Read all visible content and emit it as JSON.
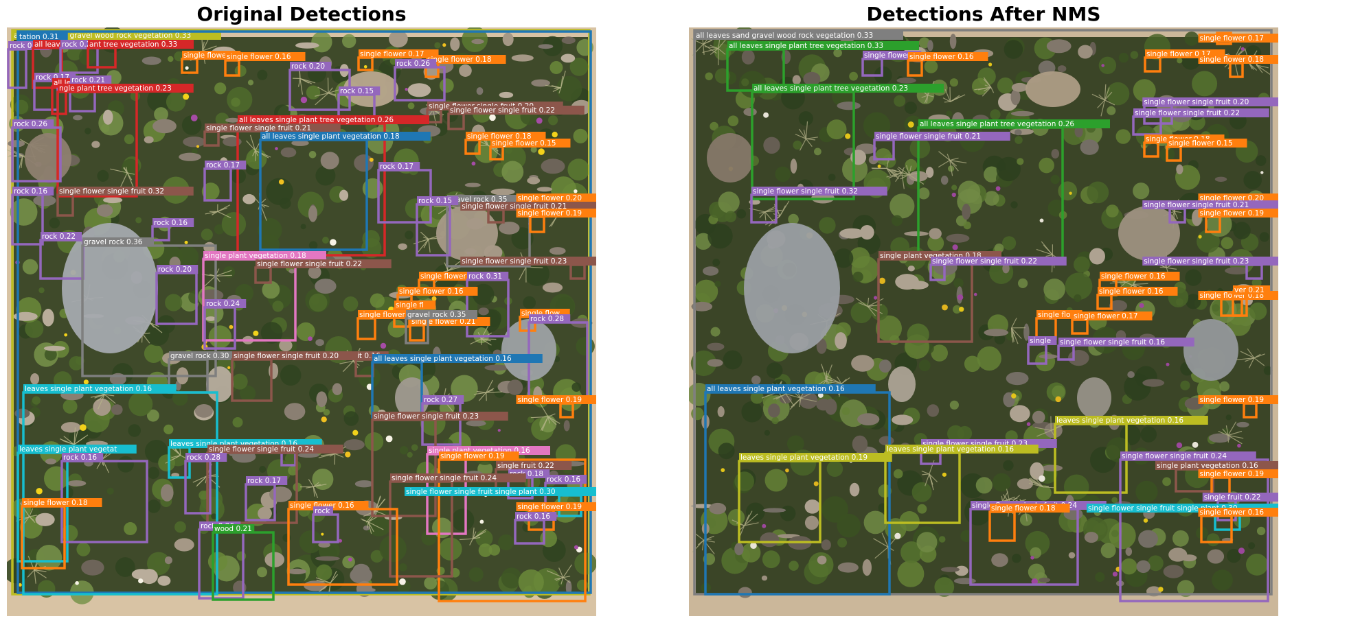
{
  "colors": {
    "all leaves": "#1f77b4",
    "rock": "#9467bd",
    "single flower": "#ff7f0e",
    "single flower single fruit": "#8c564b",
    "all leaves single plant tree": "#d62728",
    "gravel rock": "#7f7f7f",
    "leaves single plant": "#17becf",
    "single plant": "#e377c2",
    "wood": "#2ca02c",
    "sand gravel": "#bcbd22"
  },
  "panels": [
    {
      "title": "Original Detections",
      "detections": [
        {
          "label": "all leaves sand gravel wood rock vegetation 0.33",
          "color": "#bcbd22"
        },
        {
          "label": "tation 0.31",
          "color": "#1f77b4"
        },
        {
          "label": "rock 0.19",
          "color": "#9467bd"
        },
        {
          "label": "all leave",
          "color": "#d62728"
        },
        {
          "label": "rock 0.22",
          "color": "#9467bd"
        },
        {
          "label": "ant tree vegetation 0.33",
          "color": "#d62728"
        },
        {
          "label": "single flower",
          "color": "#ff7f0e"
        },
        {
          "label": "single flower 0.16",
          "color": "#ff7f0e"
        },
        {
          "label": "single flower 0.17",
          "color": "#ff7f0e"
        },
        {
          "label": "single flower 0.18",
          "color": "#ff7f0e"
        },
        {
          "label": "rock 0.17",
          "color": "#9467bd"
        },
        {
          "label": "all le",
          "color": "#d62728"
        },
        {
          "label": "rock 0.21",
          "color": "#9467bd"
        },
        {
          "label": "ngle plant tree vegetation 0.23",
          "color": "#d62728"
        },
        {
          "label": "rock 0.20",
          "color": "#9467bd"
        },
        {
          "label": "rock 0.15",
          "color": "#9467bd"
        },
        {
          "label": "rock 0.26",
          "color": "#9467bd"
        },
        {
          "label": "single flower single fruit 0.20",
          "color": "#8c564b"
        },
        {
          "label": "single flower single fruit 0.22",
          "color": "#8c564b"
        },
        {
          "label": "rock 0.26",
          "color": "#9467bd"
        },
        {
          "label": "all leaves single plant tree vegetation 0.26",
          "color": "#d62728"
        },
        {
          "label": "single flower single fruit 0.21",
          "color": "#8c564b"
        },
        {
          "label": "single flower 0.18",
          "color": "#ff7f0e"
        },
        {
          "label": "single flower 0.15",
          "color": "#ff7f0e"
        },
        {
          "label": "all leaves single plant vegetation 0.18",
          "color": "#1f77b4"
        },
        {
          "label": "rock 0.17",
          "color": "#9467bd"
        },
        {
          "label": "rock 0.17",
          "color": "#9467bd"
        },
        {
          "label": "single flower single fruit 0.32",
          "color": "#8c564b"
        },
        {
          "label": "rock 0.16",
          "color": "#9467bd"
        },
        {
          "label": "gravel rock 0.35",
          "color": "#7f7f7f"
        },
        {
          "label": "single flower 0.20",
          "color": "#ff7f0e"
        },
        {
          "label": "rock 0.15",
          "color": "#9467bd"
        },
        {
          "label": "single flower single fruit 0.21",
          "color": "#8c564b"
        },
        {
          "label": "single flower 0.19",
          "color": "#ff7f0e"
        },
        {
          "label": "rock 0.16",
          "color": "#9467bd"
        },
        {
          "label": "rock 0.22",
          "color": "#9467bd"
        },
        {
          "label": "gravel rock 0.36",
          "color": "#7f7f7f"
        },
        {
          "label": "single flower single fruit 0.23",
          "color": "#8c564b"
        },
        {
          "label": "single plant vegetation 0.18",
          "color": "#e377c2"
        },
        {
          "label": "single flower single fruit 0.22",
          "color": "#8c564b"
        },
        {
          "label": "rock 0.20",
          "color": "#9467bd"
        },
        {
          "label": "single flower 0.15",
          "color": "#ff7f0e"
        },
        {
          "label": "rock 0.31",
          "color": "#9467bd"
        },
        {
          "label": "rock 0.24",
          "color": "#9467bd"
        },
        {
          "label": "single flower 0.16",
          "color": "#ff7f0e"
        },
        {
          "label": "single fl",
          "color": "#ff7f0e"
        },
        {
          "label": "single flower 0.21",
          "color": "#ff7f0e"
        },
        {
          "label": "single flow",
          "color": "#ff7f0e"
        },
        {
          "label": "single flower 0.17",
          "color": "#ff7f0e"
        },
        {
          "label": "gravel rock 0.35",
          "color": "#7f7f7f"
        },
        {
          "label": "rock 0.28",
          "color": "#9467bd"
        },
        {
          "label": "gravel rock 0.30",
          "color": "#7f7f7f"
        },
        {
          "label": "single flower single fruit 0.20",
          "color": "#8c564b"
        },
        {
          "label": "it 0.16",
          "color": "#8c564b"
        },
        {
          "label": "all leaves single plant vegetation 0.16",
          "color": "#1f77b4"
        },
        {
          "label": "single flower 0.19",
          "color": "#ff7f0e"
        },
        {
          "label": "rock 0.27",
          "color": "#9467bd"
        },
        {
          "label": "leaves single plant vegetation 0.16",
          "color": "#17becf"
        },
        {
          "label": "single flower single fruit 0.23",
          "color": "#8c564b"
        },
        {
          "label": "rock 0.26",
          "color": "#9467bd"
        },
        {
          "label": "leaves single plant vegetat",
          "color": "#17becf"
        },
        {
          "label": "rock 0.16",
          "color": "#9467bd"
        },
        {
          "label": "leaves single plant vegetation 0.16",
          "color": "#17becf"
        },
        {
          "label": "single flower single fruit 0.24",
          "color": "#8c564b"
        },
        {
          "label": "single plant vegetation 0.16",
          "color": "#e377c2"
        },
        {
          "label": "single flower 0.19",
          "color": "#ff7f0e"
        },
        {
          "label": "single fruit 0.22",
          "color": "#8c564b"
        },
        {
          "label": "rock 0.18",
          "color": "#9467bd"
        },
        {
          "label": "rock 0.28",
          "color": "#9467bd"
        },
        {
          "label": "single flower single fruit 0.24",
          "color": "#8c564b"
        },
        {
          "label": "rock 0.16",
          "color": "#9467bd"
        },
        {
          "label": "rock 0.17",
          "color": "#9467bd"
        },
        {
          "label": "single flower single fruit single plant 0.30",
          "color": "#17becf"
        },
        {
          "label": "single flower 0.18",
          "color": "#ff7f0e"
        },
        {
          "label": "single flower 0.16",
          "color": "#ff7f0e"
        },
        {
          "label": "single flower 0.19",
          "color": "#ff7f0e"
        },
        {
          "label": "rock",
          "color": "#9467bd"
        },
        {
          "label": "rock 0.16",
          "color": "#9467bd"
        },
        {
          "label": "rock 0.26",
          "color": "#9467bd"
        },
        {
          "label": "wood 0.21",
          "color": "#2ca02c"
        }
      ]
    },
    {
      "title": "Detections After NMS",
      "detections": [
        {
          "label": "all leaves sand gravel wood rock vegetation 0.33",
          "color": "#7f7f7f"
        },
        {
          "label": "single flower 0.17",
          "color": "#ff7f0e"
        },
        {
          "label": "all leaves single plant tree vegetation 0.33",
          "color": "#2ca02c"
        },
        {
          "label": "single flower",
          "color": "#9467bd"
        },
        {
          "label": "single flower 0.16",
          "color": "#ff7f0e"
        },
        {
          "label": "single flower 0.17",
          "color": "#ff7f0e"
        },
        {
          "label": "single flower 0.18",
          "color": "#ff7f0e"
        },
        {
          "label": "all leaves single plant tree vegetation 0.23",
          "color": "#2ca02c"
        },
        {
          "label": "single flower single fruit 0.20",
          "color": "#9467bd"
        },
        {
          "label": "single flower single fruit 0.22",
          "color": "#9467bd"
        },
        {
          "label": "all leaves single plant tree vegetation 0.26",
          "color": "#2ca02c"
        },
        {
          "label": "single flower single fruit 0.21",
          "color": "#9467bd"
        },
        {
          "label": "single flower 0.18",
          "color": "#ff7f0e"
        },
        {
          "label": "single flower 0.15",
          "color": "#ff7f0e"
        },
        {
          "label": "single flower single fruit 0.32",
          "color": "#9467bd"
        },
        {
          "label": "single flower 0.20",
          "color": "#ff7f0e"
        },
        {
          "label": "single flower single fruit 0.21",
          "color": "#9467bd"
        },
        {
          "label": "single flower 0.19",
          "color": "#ff7f0e"
        },
        {
          "label": "single flower single fruit 0.23",
          "color": "#9467bd"
        },
        {
          "label": "single plant vegetation 0.18",
          "color": "#8c564b"
        },
        {
          "label": "single flower single fruit 0.22",
          "color": "#9467bd"
        },
        {
          "label": "single flower 0.16",
          "color": "#ff7f0e"
        },
        {
          "label": "single flower 0.16",
          "color": "#ff7f0e"
        },
        {
          "label": "single flower 0.18",
          "color": "#ff7f0e"
        },
        {
          "label": "ver 0.21",
          "color": "#ff7f0e"
        },
        {
          "label": "single flo",
          "color": "#ff7f0e"
        },
        {
          "label": "single flower 0.17",
          "color": "#ff7f0e"
        },
        {
          "label": "single",
          "color": "#9467bd"
        },
        {
          "label": "single flower single fruit 0.16",
          "color": "#9467bd"
        },
        {
          "label": "all leaves single plant vegetation 0.16",
          "color": "#1f77b4"
        },
        {
          "label": "single flower 0.19",
          "color": "#ff7f0e"
        },
        {
          "label": "leaves single plant vegetation 0.16",
          "color": "#bcbd22"
        },
        {
          "label": "single flower single fruit 0.23",
          "color": "#9467bd"
        },
        {
          "label": "leaves single plant vegetation 0.19",
          "color": "#bcbd22"
        },
        {
          "label": "leaves single plant vegetation 0.16",
          "color": "#bcbd22"
        },
        {
          "label": "single flower single fruit 0.24",
          "color": "#9467bd"
        },
        {
          "label": "single plant vegetation 0.16",
          "color": "#8c564b"
        },
        {
          "label": "single flower 0.19",
          "color": "#ff7f0e"
        },
        {
          "label": "single fruit 0.22",
          "color": "#9467bd"
        },
        {
          "label": "single flower single fruit 0.24",
          "color": "#9467bd"
        },
        {
          "label": "single flower single fruit single plant 0.30",
          "color": "#17becf"
        },
        {
          "label": "single flower 0.18",
          "color": "#ff7f0e"
        },
        {
          "label": "single flower 0.16",
          "color": "#ff7f0e"
        },
        {
          "label": "single flower 0.19",
          "color": "#ff7f0e"
        }
      ]
    }
  ]
}
